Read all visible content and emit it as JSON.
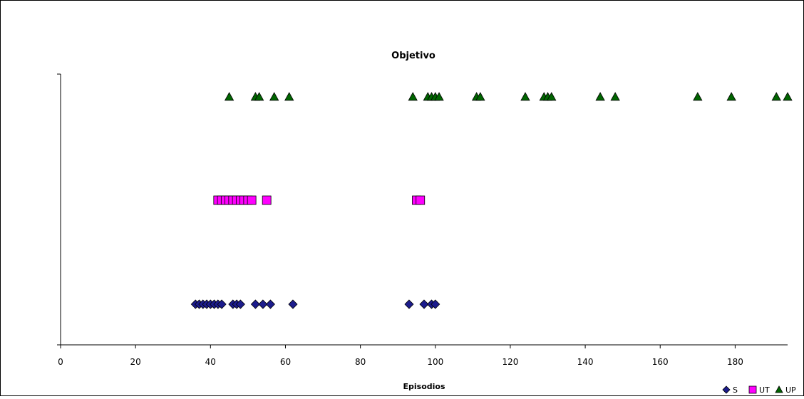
{
  "chart_data": {
    "type": "scatter",
    "title": "Objetivo",
    "xlabel": "Episodios",
    "ylabel": "",
    "xlim": [
      0,
      194
    ],
    "xticks": [
      0,
      20,
      40,
      60,
      80,
      100,
      120,
      140,
      160,
      180
    ],
    "grid": false,
    "legend_position": "bottom-right",
    "series": [
      {
        "name": "S",
        "marker": "diamond",
        "color": "#1c1c8c",
        "level": 1,
        "x": [
          36,
          37,
          38,
          39,
          40,
          41,
          42,
          43,
          46,
          47,
          48,
          52,
          54,
          56,
          62,
          93,
          97,
          99,
          100
        ]
      },
      {
        "name": "UT",
        "marker": "square",
        "color": "#ff00ff",
        "level": 2,
        "x": [
          42,
          43,
          44,
          45,
          46,
          47,
          48,
          49,
          50,
          51,
          55,
          95,
          96
        ]
      },
      {
        "name": "UP",
        "marker": "triangle",
        "color": "#006400",
        "level": 3,
        "x": [
          45,
          52,
          53,
          57,
          61,
          94,
          98,
          99,
          100,
          101,
          111,
          112,
          124,
          129,
          130,
          131,
          144,
          148,
          170,
          179,
          191,
          194
        ]
      }
    ]
  }
}
